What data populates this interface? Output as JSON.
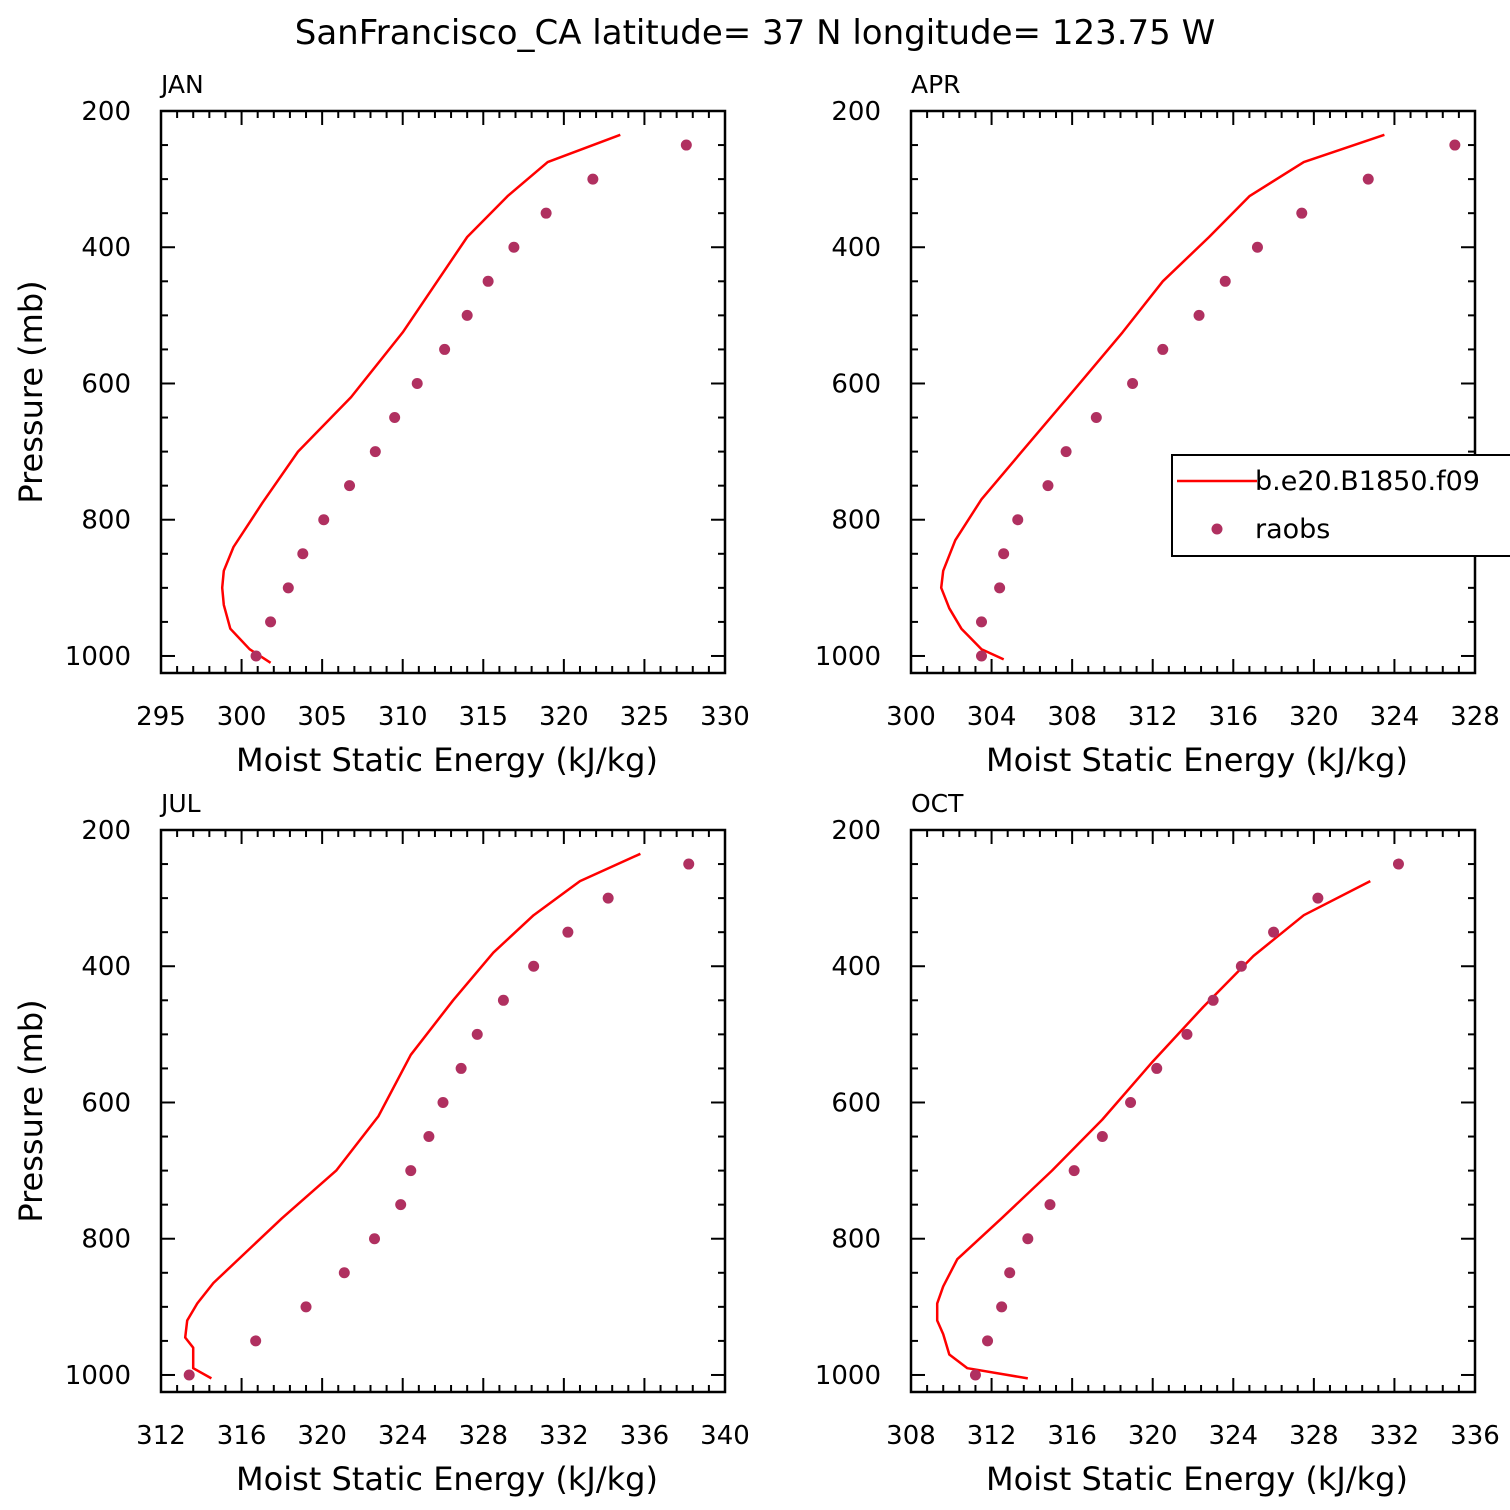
{
  "title": "SanFrancisco_CA  latitude= 37 N longitude= 123.75 W",
  "legend": {
    "entries": [
      {
        "label": "b.e20.B1850.f09",
        "kind": "line",
        "color": "#ff0000"
      },
      {
        "label": "raobs",
        "kind": "marker",
        "color": "#b03060"
      }
    ]
  },
  "colors": {
    "model_line": "#ff0000",
    "obs_marker": "#b03060"
  },
  "chart_data": [
    {
      "type": "line",
      "panel_label": "JAN",
      "xlabel": "Moist Static Energy (kJ/kg)",
      "ylabel": "Pressure (mb)",
      "xlim": [
        295,
        330
      ],
      "ylim": [
        1025,
        200
      ],
      "x_ticks": [
        "295",
        "300",
        "305",
        "310",
        "315",
        "320",
        "325",
        "330"
      ],
      "y_ticks": [
        "200",
        "400",
        "600",
        "800",
        "1000"
      ],
      "series": [
        {
          "name": "b.e20.B1850.f09",
          "kind": "line",
          "x": [
            301.8,
            300.5,
            299.3,
            298.9,
            298.8,
            298.9,
            299.5,
            301.3,
            303.5,
            306.8,
            310.0,
            314.0,
            316.5,
            319.0,
            323.5
          ],
          "y": [
            1010,
            990,
            960,
            925,
            900,
            875,
            840,
            775,
            700,
            620,
            525,
            385,
            325,
            275,
            235
          ]
        },
        {
          "name": "raobs",
          "kind": "scatter",
          "x": [
            300.9,
            301.8,
            302.9,
            303.8,
            305.1,
            306.7,
            308.3,
            309.5,
            310.9,
            312.6,
            314.0,
            315.3,
            316.9,
            318.9,
            321.8,
            327.6
          ],
          "y": [
            1000,
            950,
            900,
            850,
            800,
            750,
            700,
            650,
            600,
            550,
            500,
            450,
            400,
            350,
            300,
            250
          ]
        }
      ]
    },
    {
      "type": "line",
      "panel_label": "APR",
      "xlabel": "Moist Static Energy (kJ/kg)",
      "ylabel": "",
      "xlim": [
        300,
        328
      ],
      "ylim": [
        1025,
        200
      ],
      "x_ticks": [
        "300",
        "304",
        "308",
        "312",
        "316",
        "320",
        "324",
        "328"
      ],
      "y_ticks": [
        "200",
        "400",
        "600",
        "800",
        "1000"
      ],
      "series": [
        {
          "name": "b.e20.B1850.f09",
          "kind": "line",
          "x": [
            304.6,
            303.5,
            302.5,
            301.9,
            301.5,
            301.6,
            302.2,
            303.5,
            305.5,
            307.8,
            310.5,
            312.5,
            314.8,
            316.8,
            319.5,
            323.5
          ],
          "y": [
            1005,
            990,
            960,
            930,
            900,
            875,
            830,
            770,
            700,
            620,
            525,
            450,
            385,
            325,
            275,
            235
          ]
        },
        {
          "name": "raobs",
          "kind": "scatter",
          "x": [
            303.5,
            303.5,
            304.4,
            304.6,
            305.3,
            306.8,
            307.7,
            309.2,
            311.0,
            312.5,
            314.3,
            315.6,
            317.2,
            319.4,
            322.7,
            327.0
          ],
          "y": [
            1000,
            950,
            900,
            850,
            800,
            750,
            700,
            650,
            600,
            550,
            500,
            450,
            400,
            350,
            300,
            250
          ]
        }
      ]
    },
    {
      "type": "line",
      "panel_label": "JUL",
      "xlabel": "Moist Static Energy (kJ/kg)",
      "ylabel": "Pressure (mb)",
      "xlim": [
        312,
        340
      ],
      "ylim": [
        1025,
        200
      ],
      "x_ticks": [
        "312",
        "316",
        "320",
        "324",
        "328",
        "332",
        "336",
        "340"
      ],
      "y_ticks": [
        "200",
        "400",
        "600",
        "800",
        "1000"
      ],
      "series": [
        {
          "name": "b.e20.B1850.f09",
          "kind": "line",
          "x": [
            314.5,
            313.6,
            313.6,
            313.2,
            313.3,
            313.8,
            314.6,
            318.0,
            320.7,
            322.8,
            324.4,
            326.5,
            328.5,
            330.5,
            332.8,
            335.8
          ],
          "y": [
            1005,
            990,
            960,
            945,
            920,
            895,
            865,
            770,
            700,
            620,
            530,
            450,
            380,
            325,
            275,
            235
          ]
        },
        {
          "name": "raobs",
          "kind": "scatter",
          "x": [
            313.4,
            316.7,
            319.2,
            321.1,
            322.6,
            323.9,
            324.4,
            325.3,
            326.0,
            326.9,
            327.7,
            329.0,
            330.5,
            332.2,
            334.2,
            338.2
          ],
          "y": [
            1000,
            950,
            900,
            850,
            800,
            750,
            700,
            650,
            600,
            550,
            500,
            450,
            400,
            350,
            300,
            250
          ]
        }
      ]
    },
    {
      "type": "line",
      "panel_label": "OCT",
      "xlabel": "Moist Static Energy (kJ/kg)",
      "ylabel": "",
      "xlim": [
        308,
        336
      ],
      "ylim": [
        1025,
        200
      ],
      "x_ticks": [
        "308",
        "312",
        "316",
        "320",
        "324",
        "328",
        "332",
        "336"
      ],
      "y_ticks": [
        "200",
        "400",
        "600",
        "800",
        "1000"
      ],
      "series": [
        {
          "name": "b.e20.B1850.f09",
          "kind": "line",
          "x": [
            313.8,
            310.8,
            309.9,
            309.6,
            309.3,
            309.3,
            309.6,
            310.3,
            312.5,
            315.0,
            317.5,
            320.0,
            322.5,
            325.0,
            327.5,
            330.8
          ],
          "y": [
            1005,
            990,
            970,
            940,
            920,
            895,
            870,
            830,
            770,
            700,
            625,
            540,
            460,
            385,
            325,
            275
          ]
        },
        {
          "name": "raobs",
          "kind": "scatter",
          "x": [
            311.2,
            311.8,
            312.5,
            312.9,
            313.8,
            314.9,
            316.1,
            317.5,
            318.9,
            320.2,
            321.7,
            323.0,
            324.4,
            326.0,
            328.2,
            332.2
          ],
          "y": [
            1000,
            950,
            900,
            850,
            800,
            750,
            700,
            650,
            600,
            550,
            500,
            450,
            400,
            350,
            300,
            250
          ]
        }
      ]
    }
  ]
}
